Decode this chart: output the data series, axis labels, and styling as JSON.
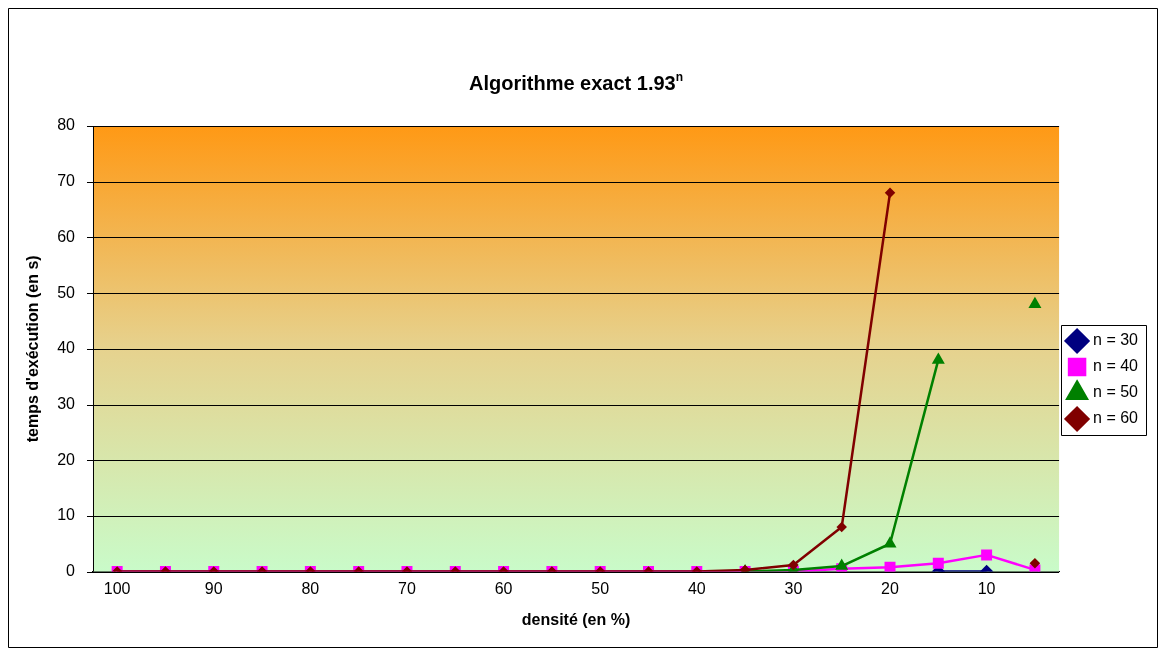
{
  "chart_data": {
    "type": "line",
    "title": "Algorithme exact 1.93$^{n}$",
    "xlabel": "densité (en %)",
    "ylabel": "temps d'exécution (en s)",
    "categories": [
      "100",
      null,
      "90",
      null,
      "80",
      null,
      "70",
      null,
      "60",
      null,
      "50",
      null,
      "40",
      null,
      "30",
      null,
      "20",
      null,
      "10",
      null
    ],
    "series": [
      {
        "name": "n = 30",
        "color": "#000080",
        "marker": "diamond",
        "values": [
          null,
          null,
          null,
          null,
          null,
          null,
          null,
          null,
          null,
          null,
          null,
          null,
          null,
          null,
          null,
          null,
          null,
          0,
          0,
          null
        ]
      },
      {
        "name": "n = 40",
        "color": "#ff00ff",
        "marker": "square",
        "values": [
          0,
          0,
          0,
          0,
          0,
          0,
          0,
          0,
          0,
          0,
          0,
          0,
          0,
          0,
          0,
          0.5,
          0.8,
          1.5,
          3,
          0.3
        ]
      },
      {
        "name": "n = 50",
        "color": "#008000",
        "marker": "triangle",
        "values": [
          null,
          null,
          null,
          null,
          null,
          null,
          null,
          null,
          null,
          null,
          null,
          null,
          null,
          0,
          0.3,
          1,
          5,
          38,
          null,
          48
        ]
      },
      {
        "name": "n = 60",
        "color": "#800000",
        "marker": "diamond",
        "values": [
          0,
          0,
          0,
          0,
          0,
          0,
          0,
          0,
          0,
          0,
          0,
          0,
          0,
          0.3,
          1.2,
          8,
          68,
          null,
          null,
          1.5
        ]
      }
    ],
    "ylim": [
      0,
      80
    ],
    "yticks": [
      0,
      10,
      20,
      30,
      40,
      50,
      60,
      70,
      80
    ],
    "grid": "y",
    "legend": "right",
    "line_style": "solid"
  }
}
